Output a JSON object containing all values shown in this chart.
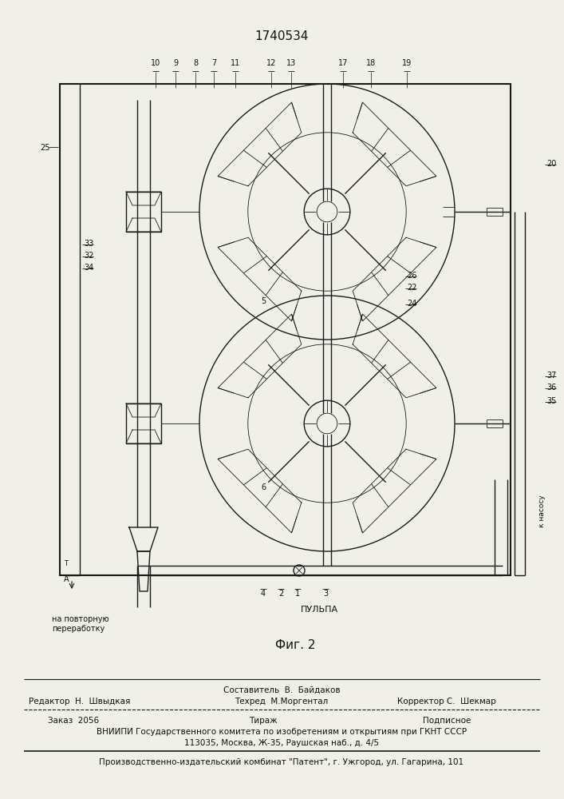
{
  "title": "1740534",
  "fig_label": "Фиг. 2",
  "background_color": "#f0efe8",
  "line_color": "#1a1a1a",
  "text_color": "#111111",
  "labels_top": [
    "10",
    "9",
    "8",
    "7",
    "11",
    "12",
    "13",
    "17",
    "18",
    "19"
  ],
  "footer_line1": "Составитель  В.  Байдаков",
  "footer_line2_left": "Редактор  Н.  Швыдкая",
  "footer_line2_mid": "Техред  М.Моргентал",
  "footer_line2_right": "Корректор С.  Шекмар",
  "footer_order": "Заказ  2056",
  "footer_tirazh": "Тираж",
  "footer_podpisnoe": "Подписное",
  "footer_vnipi": "ВНИИПИ Государственного комитета по изобретениям и открытиям при ГКНТ СССР",
  "footer_address": "113035, Москва, Ж-35, Раушская наб., д. 4/5",
  "footer_production": "Производственно-издательский комбинат \"Патент\", г. Ужгород, ул. Гагарина, 101",
  "pulpa_label": "ПУЛЬПА",
  "na_povtornuyu": "на повторную\nпереработку",
  "k_nasosu": "к насосу"
}
